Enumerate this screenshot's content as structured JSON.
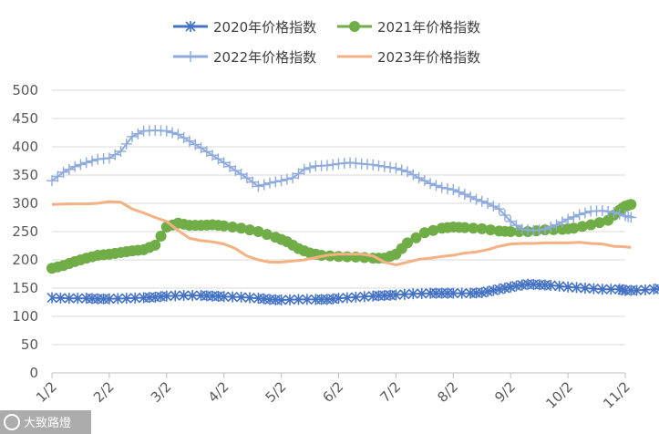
{
  "chart_data": {
    "type": "line",
    "title": "",
    "xlabel": "",
    "ylabel": "",
    "ylim": [
      0,
      500
    ],
    "yticks": [
      0,
      50,
      100,
      150,
      200,
      250,
      300,
      350,
      400,
      450,
      500
    ],
    "x_ticks": [
      "1/2",
      "2/2",
      "3/2",
      "4/2",
      "5/2",
      "6/2",
      "7/2",
      "8/2",
      "9/2",
      "10/2",
      "11/2"
    ],
    "grid": "horizontal",
    "legend_position": "top",
    "series": [
      {
        "name": "2020年价格指数",
        "color": "#4472c4",
        "marker": "asterisk",
        "points": [
          [
            0,
            133
          ],
          [
            0.3,
            132
          ],
          [
            0.6,
            132
          ],
          [
            0.8,
            131
          ],
          [
            1.0,
            131
          ],
          [
            1.3,
            132
          ],
          [
            1.6,
            133
          ],
          [
            1.8,
            134
          ],
          [
            2.0,
            136
          ],
          [
            2.3,
            137
          ],
          [
            2.6,
            137
          ],
          [
            2.8,
            136
          ],
          [
            3.0,
            135
          ],
          [
            3.3,
            134
          ],
          [
            3.6,
            132
          ],
          [
            3.8,
            130
          ],
          [
            4.0,
            129
          ],
          [
            4.3,
            130
          ],
          [
            4.6,
            130
          ],
          [
            4.8,
            130
          ],
          [
            5.0,
            132
          ],
          [
            5.3,
            134
          ],
          [
            5.6,
            136
          ],
          [
            5.8,
            137
          ],
          [
            6.0,
            138
          ],
          [
            6.3,
            140
          ],
          [
            6.6,
            141
          ],
          [
            6.8,
            141
          ],
          [
            7.0,
            141
          ],
          [
            7.3,
            141
          ],
          [
            7.5,
            142
          ],
          [
            7.7,
            146
          ],
          [
            7.9,
            150
          ],
          [
            8.1,
            154
          ],
          [
            8.3,
            157
          ],
          [
            8.5,
            156
          ],
          [
            8.7,
            155
          ],
          [
            9.0,
            152
          ],
          [
            9.3,
            150
          ],
          [
            9.6,
            148
          ],
          [
            9.9,
            148
          ],
          [
            10.0,
            146
          ],
          [
            10.2,
            146
          ],
          [
            10.5,
            148
          ],
          [
            10.7,
            150
          ]
        ]
      },
      {
        "name": "2021年价格指数",
        "color": "#70ad47",
        "marker": "circle",
        "points": [
          [
            0,
            185
          ],
          [
            0.2,
            190
          ],
          [
            0.4,
            197
          ],
          [
            0.6,
            203
          ],
          [
            0.8,
            208
          ],
          [
            1.0,
            210
          ],
          [
            1.2,
            213
          ],
          [
            1.4,
            216
          ],
          [
            1.6,
            218
          ],
          [
            1.8,
            226
          ],
          [
            2.0,
            258
          ],
          [
            2.2,
            265
          ],
          [
            2.4,
            261
          ],
          [
            2.6,
            261
          ],
          [
            2.8,
            262
          ],
          [
            3.0,
            260
          ],
          [
            3.3,
            256
          ],
          [
            3.6,
            250
          ],
          [
            3.9,
            240
          ],
          [
            4.1,
            232
          ],
          [
            4.3,
            220
          ],
          [
            4.5,
            212
          ],
          [
            4.7,
            208
          ],
          [
            5.0,
            206
          ],
          [
            5.3,
            205
          ],
          [
            5.6,
            203
          ],
          [
            5.8,
            203
          ],
          [
            6.0,
            210
          ],
          [
            6.2,
            230
          ],
          [
            6.5,
            248
          ],
          [
            6.8,
            256
          ],
          [
            7.0,
            258
          ],
          [
            7.2,
            257
          ],
          [
            7.5,
            255
          ],
          [
            7.8,
            251
          ],
          [
            8.0,
            250
          ],
          [
            8.3,
            250
          ],
          [
            8.6,
            253
          ],
          [
            8.9,
            254
          ],
          [
            9.1,
            256
          ],
          [
            9.4,
            262
          ],
          [
            9.7,
            270
          ],
          [
            9.9,
            288
          ],
          [
            10.0,
            295
          ],
          [
            10.1,
            298
          ]
        ]
      },
      {
        "name": "2022年价格指数",
        "color": "#8faadc",
        "marker": "plus",
        "points": [
          [
            0,
            340
          ],
          [
            0.2,
            355
          ],
          [
            0.4,
            365
          ],
          [
            0.6,
            372
          ],
          [
            0.8,
            378
          ],
          [
            1.0,
            380
          ],
          [
            1.2,
            392
          ],
          [
            1.4,
            418
          ],
          [
            1.6,
            428
          ],
          [
            1.8,
            429
          ],
          [
            2.0,
            428
          ],
          [
            2.2,
            422
          ],
          [
            2.4,
            410
          ],
          [
            2.6,
            398
          ],
          [
            2.8,
            385
          ],
          [
            3.0,
            372
          ],
          [
            3.2,
            358
          ],
          [
            3.4,
            345
          ],
          [
            3.6,
            330
          ],
          [
            3.8,
            336
          ],
          [
            4.0,
            340
          ],
          [
            4.2,
            345
          ],
          [
            4.4,
            360
          ],
          [
            4.6,
            366
          ],
          [
            4.8,
            367
          ],
          [
            5.0,
            370
          ],
          [
            5.2,
            372
          ],
          [
            5.4,
            370
          ],
          [
            5.6,
            368
          ],
          [
            5.8,
            365
          ],
          [
            6.0,
            362
          ],
          [
            6.2,
            356
          ],
          [
            6.4,
            345
          ],
          [
            6.6,
            335
          ],
          [
            6.8,
            328
          ],
          [
            7.0,
            324
          ],
          [
            7.2,
            316
          ],
          [
            7.4,
            307
          ],
          [
            7.6,
            300
          ],
          [
            7.8,
            290
          ],
          [
            8.0,
            268
          ],
          [
            8.2,
            254
          ],
          [
            8.4,
            252
          ],
          [
            8.6,
            254
          ],
          [
            8.8,
            262
          ],
          [
            9.0,
            272
          ],
          [
            9.2,
            280
          ],
          [
            9.4,
            286
          ],
          [
            9.6,
            287
          ],
          [
            9.8,
            284
          ],
          [
            10.0,
            278
          ],
          [
            10.1,
            275
          ]
        ]
      },
      {
        "name": "2023年价格指数",
        "color": "#f4b183",
        "marker": "none",
        "points": [
          [
            0,
            298
          ],
          [
            0.3,
            299
          ],
          [
            0.6,
            299
          ],
          [
            0.8,
            300
          ],
          [
            1.0,
            303
          ],
          [
            1.2,
            302
          ],
          [
            1.4,
            290
          ],
          [
            1.6,
            283
          ],
          [
            1.8,
            275
          ],
          [
            2.0,
            268
          ],
          [
            2.2,
            252
          ],
          [
            2.4,
            238
          ],
          [
            2.6,
            234
          ],
          [
            2.8,
            232
          ],
          [
            3.0,
            228
          ],
          [
            3.2,
            220
          ],
          [
            3.4,
            207
          ],
          [
            3.6,
            200
          ],
          [
            3.8,
            196
          ],
          [
            4.0,
            196
          ],
          [
            4.2,
            198
          ],
          [
            4.4,
            200
          ],
          [
            4.6,
            204
          ],
          [
            4.8,
            208
          ],
          [
            5.0,
            210
          ],
          [
            5.2,
            210
          ],
          [
            5.4,
            210
          ],
          [
            5.6,
            207
          ],
          [
            5.8,
            196
          ],
          [
            6.0,
            191
          ],
          [
            6.2,
            196
          ],
          [
            6.4,
            201
          ],
          [
            6.6,
            203
          ],
          [
            6.8,
            206
          ],
          [
            7.0,
            208
          ],
          [
            7.2,
            212
          ],
          [
            7.4,
            214
          ],
          [
            7.6,
            218
          ],
          [
            7.8,
            224
          ],
          [
            8.0,
            228
          ],
          [
            8.2,
            229
          ],
          [
            8.4,
            229
          ],
          [
            8.6,
            230
          ],
          [
            8.8,
            230
          ],
          [
            9.0,
            230
          ],
          [
            9.2,
            231
          ],
          [
            9.4,
            229
          ],
          [
            9.6,
            228
          ],
          [
            9.8,
            224
          ],
          [
            10.0,
            223
          ],
          [
            10.1,
            222
          ]
        ]
      }
    ]
  },
  "watermark": {
    "text": "大致路燈"
  }
}
